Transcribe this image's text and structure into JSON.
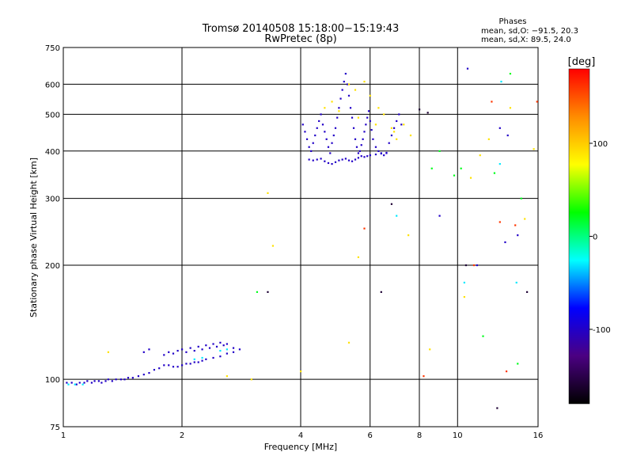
{
  "chart_data": {
    "type": "scatter",
    "title": "Tromsø 20140508 15:18:00−15:19:43",
    "subtitle": "RwPretec (8p)",
    "xlabel": "Frequency [MHz]",
    "ylabel": "Stationary phase Virtual Height [km]",
    "x_scale": "log",
    "y_scale": "log",
    "xlim": [
      1,
      16
    ],
    "ylim": [
      75,
      750
    ],
    "x_ticks": [
      1,
      2,
      4,
      6,
      8,
      10,
      16
    ],
    "y_ticks": [
      75,
      100,
      200,
      300,
      400,
      500,
      600,
      750
    ],
    "grid": true,
    "phase_stats": {
      "title": "Phases",
      "line1": "mean, sd,O: −91.5, 20.3",
      "line2": "mean, sd,X:  89.5, 24.0"
    },
    "colorbar": {
      "label": "[deg]",
      "ticks": [
        100,
        0,
        -100
      ],
      "range": [
        -180,
        180
      ],
      "colors": [
        "#000000",
        "#4b0082",
        "#0000ff",
        "#00ffff",
        "#00ff00",
        "#ffff00",
        "#ff8c00",
        "#ff0000"
      ]
    },
    "series": [
      {
        "color_phase": -100,
        "points": [
          [
            1.02,
            98
          ],
          [
            1.05,
            98
          ],
          [
            1.08,
            97
          ],
          [
            1.1,
            98
          ],
          [
            1.13,
            98
          ],
          [
            1.15,
            99
          ],
          [
            1.18,
            98
          ],
          [
            1.2,
            99
          ],
          [
            1.23,
            99
          ],
          [
            1.25,
            98
          ],
          [
            1.28,
            99
          ],
          [
            1.3,
            100
          ],
          [
            1.33,
            99
          ],
          [
            1.36,
            100
          ],
          [
            1.4,
            100
          ],
          [
            1.43,
            100
          ],
          [
            1.46,
            101
          ],
          [
            1.5,
            101
          ],
          [
            1.55,
            102
          ],
          [
            1.6,
            103
          ],
          [
            1.65,
            104
          ],
          [
            1.7,
            106
          ],
          [
            1.75,
            107
          ],
          [
            1.8,
            109
          ],
          [
            1.85,
            109
          ],
          [
            1.9,
            108
          ],
          [
            1.95,
            108
          ],
          [
            2.0,
            109
          ],
          [
            2.05,
            110
          ],
          [
            2.1,
            110
          ],
          [
            2.15,
            111
          ],
          [
            2.2,
            111
          ],
          [
            2.25,
            112
          ],
          [
            2.3,
            113
          ],
          [
            2.4,
            114
          ],
          [
            2.5,
            115
          ],
          [
            2.6,
            117
          ],
          [
            2.7,
            118
          ],
          [
            1.6,
            118
          ],
          [
            1.65,
            120
          ],
          [
            1.8,
            116
          ],
          [
            1.85,
            118
          ],
          [
            1.9,
            117
          ],
          [
            1.95,
            119
          ],
          [
            2.0,
            120
          ],
          [
            2.05,
            118
          ],
          [
            2.1,
            121
          ],
          [
            2.15,
            119
          ],
          [
            2.2,
            122
          ],
          [
            2.25,
            120
          ],
          [
            2.3,
            123
          ],
          [
            2.35,
            121
          ],
          [
            2.4,
            124
          ],
          [
            2.45,
            122
          ],
          [
            2.5,
            125
          ],
          [
            2.55,
            123
          ],
          [
            2.6,
            124
          ],
          [
            2.7,
            121
          ],
          [
            2.8,
            120
          ],
          [
            4.05,
            470
          ],
          [
            4.1,
            450
          ],
          [
            4.15,
            430
          ],
          [
            4.2,
            410
          ],
          [
            4.25,
            400
          ],
          [
            4.3,
            420
          ],
          [
            4.35,
            440
          ],
          [
            4.4,
            460
          ],
          [
            4.45,
            480
          ],
          [
            4.5,
            500
          ],
          [
            4.55,
            470
          ],
          [
            4.6,
            450
          ],
          [
            4.65,
            430
          ],
          [
            4.7,
            410
          ],
          [
            4.75,
            395
          ],
          [
            4.8,
            420
          ],
          [
            4.85,
            440
          ],
          [
            4.9,
            460
          ],
          [
            4.95,
            490
          ],
          [
            5.0,
            520
          ],
          [
            5.05,
            550
          ],
          [
            5.1,
            580
          ],
          [
            5.15,
            610
          ],
          [
            5.2,
            640
          ],
          [
            5.25,
            600
          ],
          [
            5.3,
            560
          ],
          [
            5.35,
            520
          ],
          [
            5.4,
            490
          ],
          [
            5.45,
            460
          ],
          [
            5.5,
            430
          ],
          [
            5.55,
            410
          ],
          [
            5.6,
            395
          ],
          [
            5.65,
            400
          ],
          [
            5.7,
            415
          ],
          [
            5.75,
            430
          ],
          [
            5.8,
            450
          ],
          [
            5.85,
            470
          ],
          [
            5.9,
            490
          ],
          [
            5.95,
            510
          ],
          [
            6.0,
            480
          ],
          [
            6.05,
            455
          ],
          [
            6.1,
            430
          ],
          [
            6.2,
            410
          ],
          [
            6.3,
            400
          ],
          [
            6.4,
            395
          ],
          [
            6.5,
            390
          ],
          [
            6.6,
            395
          ],
          [
            6.7,
            420
          ],
          [
            6.8,
            440
          ],
          [
            6.9,
            460
          ],
          [
            7.0,
            480
          ],
          [
            7.1,
            500
          ],
          [
            7.2,
            470
          ],
          [
            4.2,
            380
          ],
          [
            4.3,
            378
          ],
          [
            4.4,
            380
          ],
          [
            4.5,
            382
          ],
          [
            4.6,
            376
          ],
          [
            4.7,
            372
          ],
          [
            4.8,
            370
          ],
          [
            4.9,
            374
          ],
          [
            5.0,
            378
          ],
          [
            5.1,
            380
          ],
          [
            5.2,
            382
          ],
          [
            5.3,
            378
          ],
          [
            5.4,
            376
          ],
          [
            5.5,
            380
          ],
          [
            5.6,
            384
          ],
          [
            5.7,
            388
          ],
          [
            5.8,
            386
          ],
          [
            5.9,
            388
          ],
          [
            6.0,
            390
          ],
          [
            6.2,
            392
          ],
          [
            6.4,
            394
          ],
          [
            6.6,
            396
          ],
          [
            10.6,
            660
          ],
          [
            13.2,
            230
          ],
          [
            14.2,
            240
          ],
          [
            13.4,
            440
          ],
          [
            12.8,
            460
          ],
          [
            11.2,
            200
          ],
          [
            9.0,
            270
          ]
        ]
      },
      {
        "color_phase": 90,
        "points": [
          [
            4.6,
            520
          ],
          [
            4.8,
            540
          ],
          [
            5.0,
            510
          ],
          [
            5.3,
            600
          ],
          [
            5.5,
            580
          ],
          [
            5.8,
            610
          ],
          [
            6.0,
            560
          ],
          [
            6.3,
            520
          ],
          [
            6.5,
            500
          ],
          [
            6.8,
            460
          ],
          [
            7.0,
            430
          ],
          [
            7.3,
            470
          ],
          [
            7.6,
            440
          ],
          [
            5.6,
            490
          ],
          [
            6.2,
            470
          ],
          [
            6.9,
            450
          ],
          [
            1.3,
            118
          ],
          [
            2.6,
            102
          ],
          [
            3.0,
            100
          ],
          [
            3.3,
            310
          ],
          [
            3.4,
            225
          ],
          [
            4.0,
            105
          ],
          [
            5.3,
            125
          ],
          [
            5.6,
            210
          ],
          [
            7.5,
            240
          ],
          [
            8.5,
            120
          ],
          [
            10.4,
            165
          ],
          [
            10.8,
            340
          ],
          [
            11.4,
            390
          ],
          [
            12.0,
            430
          ],
          [
            13.6,
            520
          ],
          [
            14.8,
            265
          ],
          [
            15.6,
            405
          ]
        ]
      },
      {
        "color_phase": 160,
        "points": [
          [
            5.8,
            250
          ],
          [
            8.2,
            102
          ],
          [
            12.8,
            260
          ],
          [
            13.3,
            105
          ],
          [
            14.0,
            255
          ],
          [
            11.0,
            200
          ],
          [
            15.9,
            540
          ],
          [
            12.2,
            540
          ]
        ]
      },
      {
        "color_phase": 20,
        "points": [
          [
            3.1,
            170
          ],
          [
            8.6,
            360
          ],
          [
            9.0,
            400
          ],
          [
            9.8,
            345
          ],
          [
            10.2,
            360
          ],
          [
            11.6,
            130
          ],
          [
            12.4,
            350
          ],
          [
            14.2,
            110
          ],
          [
            13.6,
            640
          ],
          [
            14.5,
            300
          ]
        ]
      },
      {
        "color_phase": -30,
        "points": [
          [
            1.03,
            97
          ],
          [
            1.07,
            97
          ],
          [
            1.12,
            97
          ],
          [
            2.15,
            113
          ],
          [
            2.25,
            114
          ],
          [
            2.5,
            119
          ],
          [
            2.6,
            120
          ],
          [
            7.0,
            270
          ],
          [
            10.4,
            180
          ],
          [
            12.8,
            370
          ],
          [
            14.1,
            180
          ],
          [
            12.9,
            610
          ]
        ]
      },
      {
        "color_phase": -160,
        "points": [
          [
            3.3,
            170
          ],
          [
            6.4,
            170
          ],
          [
            6.8,
            290
          ],
          [
            8.0,
            515
          ],
          [
            8.4,
            505
          ],
          [
            10.5,
            200
          ],
          [
            12.6,
            84
          ],
          [
            15.0,
            170
          ]
        ]
      }
    ]
  }
}
